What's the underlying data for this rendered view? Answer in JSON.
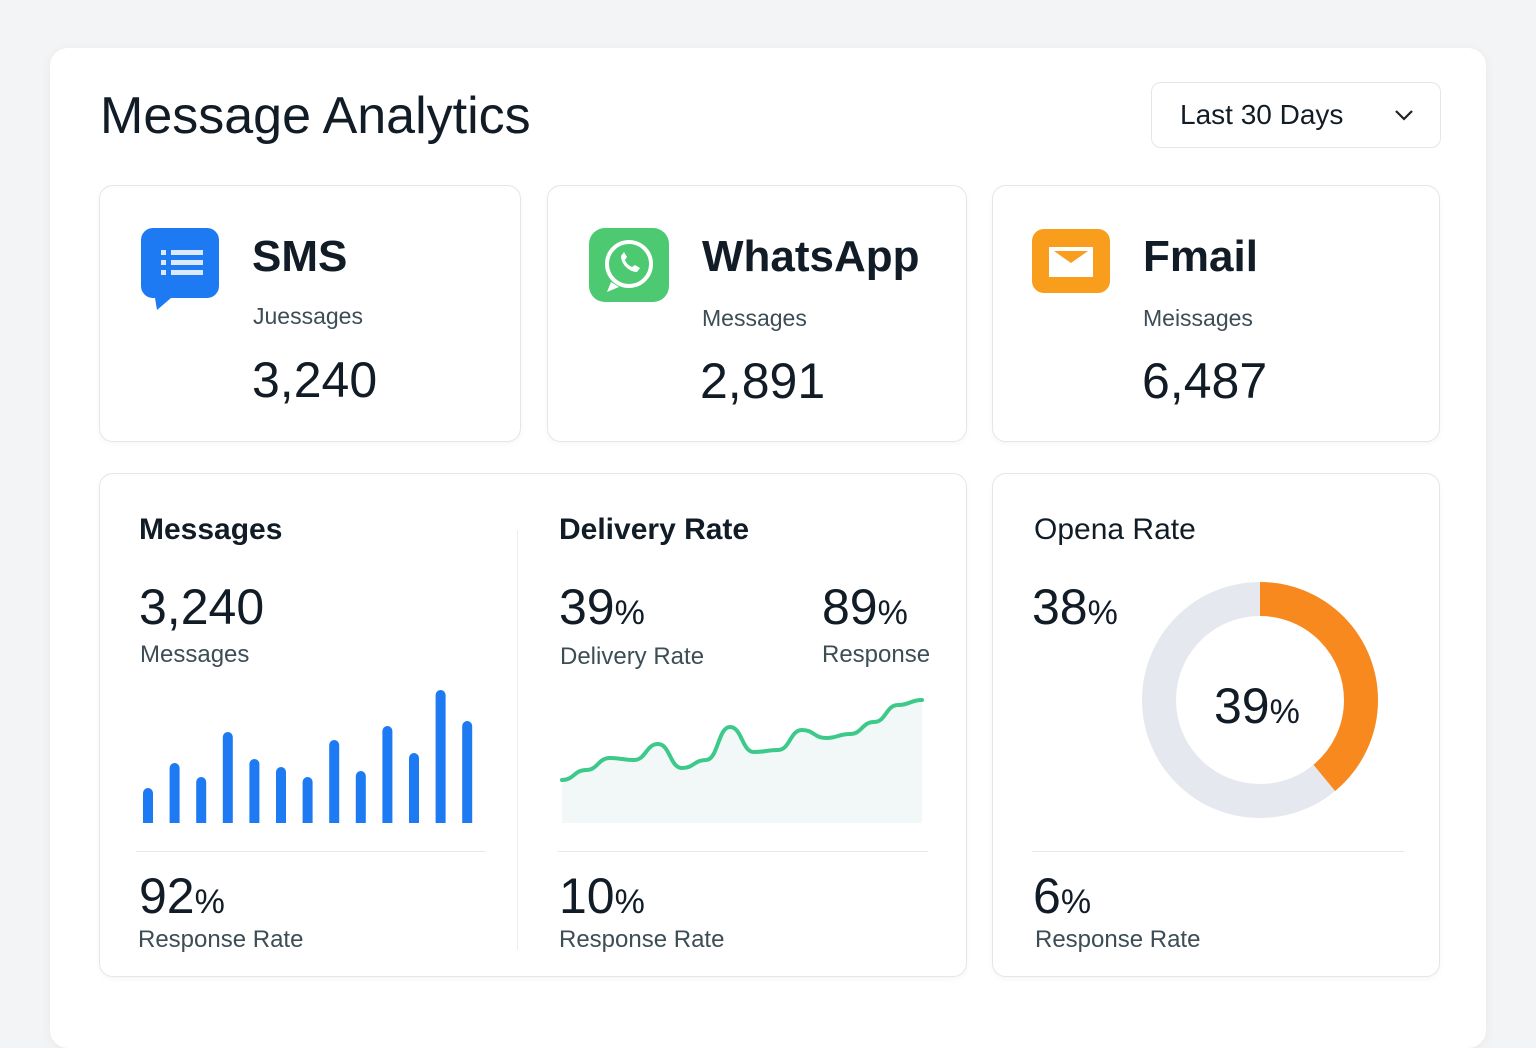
{
  "header": {
    "title": "Message Analytics",
    "range": "Last 30 Days"
  },
  "channels": [
    {
      "name": "SMS",
      "sub": "Juessages",
      "value": "3,240",
      "icon": "chat-bubble-icon",
      "color": "#1d7af3"
    },
    {
      "name": "WhatsApp",
      "sub": "Messages",
      "value": "2,891",
      "icon": "whatsapp-icon",
      "color": "#4cc971"
    },
    {
      "name": "Fmail",
      "sub": "Meissages",
      "value": "6,487",
      "icon": "envelope-icon",
      "color": "#f89d1c"
    }
  ],
  "messages": {
    "title": "Messages",
    "value": "3,240",
    "label": "Messages",
    "rate": "92",
    "rate_unit": "%",
    "rate_label": "Response Rate"
  },
  "delivery": {
    "title": "Delivery Rate",
    "value": "39",
    "unit": "%",
    "label": "Delivery Rate",
    "resp": "89",
    "resp_unit": "%",
    "resp_label": "Response",
    "rate": "10",
    "rate_unit": "%",
    "rate_label": "Response Rate"
  },
  "open": {
    "title": "Opena Rate",
    "value": "38",
    "unit": "%",
    "donut": "39",
    "donut_unit": "%",
    "rate": "6",
    "rate_unit": "%",
    "rate_label": "Response Rate"
  },
  "chart_data": [
    {
      "type": "bar",
      "title": "Messages",
      "values": [
        35,
        60,
        46,
        91,
        64,
        56,
        46,
        83,
        52,
        97,
        70,
        133,
        102
      ],
      "color": "#1d7af3"
    },
    {
      "type": "area",
      "title": "Delivery Rate",
      "values": [
        43,
        53,
        65,
        63,
        79,
        55,
        63,
        96,
        71,
        73,
        93,
        85,
        89,
        101,
        118,
        123
      ],
      "color": "#3cc98a"
    },
    {
      "type": "pie",
      "title": "Opena Rate",
      "values": [
        39,
        61
      ],
      "colors": [
        "#f7891f",
        "#e6e8ef"
      ]
    }
  ]
}
